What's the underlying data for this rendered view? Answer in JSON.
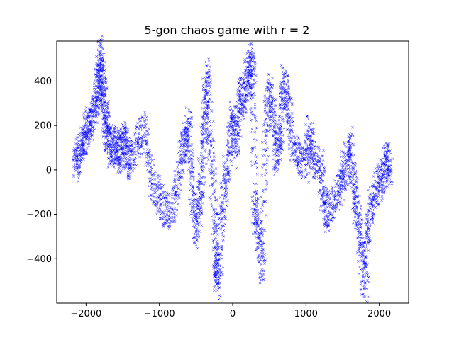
{
  "chart_data": {
    "type": "scatter",
    "title": "5-gon chaos game with r = 2",
    "xlabel": "",
    "ylabel": "",
    "xlim": [
      -2400,
      2400
    ],
    "ylim": [
      -600,
      580
    ],
    "xticks": [
      -2000,
      -1000,
      0,
      1000,
      2000
    ],
    "xtick_labels": [
      "−2000",
      "−1000",
      "0",
      "1000",
      "2000"
    ],
    "yticks": [
      -400,
      -200,
      0,
      200,
      400
    ],
    "ytick_labels": [
      "−400",
      "−200",
      "0",
      "200",
      "400"
    ],
    "grid": false,
    "marker": "x",
    "color": "#0000ff",
    "series": [
      {
        "values": [
          [
            -2150,
            10
          ],
          [
            -2100,
            60
          ],
          [
            -2050,
            120
          ],
          [
            -2000,
            170
          ],
          [
            -1950,
            210
          ],
          [
            -1900,
            260
          ],
          [
            -1850,
            330
          ],
          [
            -1820,
            420
          ],
          [
            -1800,
            530
          ],
          [
            -1780,
            380
          ],
          [
            -1750,
            300
          ],
          [
            -1720,
            200
          ],
          [
            -1700,
            130
          ],
          [
            -1650,
            80
          ],
          [
            -1600,
            120
          ],
          [
            -1550,
            60
          ],
          [
            -1500,
            150
          ],
          [
            -1450,
            100
          ],
          [
            -1400,
            20
          ],
          [
            -1300,
            120
          ],
          [
            -1200,
            190
          ],
          [
            -1100,
            -60
          ],
          [
            -1000,
            -120
          ],
          [
            -900,
            -200
          ],
          [
            -800,
            -150
          ],
          [
            -700,
            40
          ],
          [
            -650,
            120
          ],
          [
            -600,
            200
          ],
          [
            -550,
            -80
          ],
          [
            -500,
            -280
          ],
          [
            -450,
            -120
          ],
          [
            -400,
            60
          ],
          [
            -380,
            250
          ],
          [
            -350,
            430
          ],
          [
            -300,
            160
          ],
          [
            -250,
            -200
          ],
          [
            -220,
            -420
          ],
          [
            -200,
            -510
          ],
          [
            -150,
            -250
          ],
          [
            -100,
            -60
          ],
          [
            -50,
            100
          ],
          [
            0,
            250
          ],
          [
            50,
            80
          ],
          [
            100,
            350
          ],
          [
            150,
            290
          ],
          [
            200,
            420
          ],
          [
            250,
            500
          ],
          [
            280,
            380
          ],
          [
            300,
            -180
          ],
          [
            350,
            -300
          ],
          [
            400,
            -450
          ],
          [
            450,
            120
          ],
          [
            500,
            360
          ],
          [
            550,
            250
          ],
          [
            600,
            40
          ],
          [
            650,
            160
          ],
          [
            700,
            400
          ],
          [
            750,
            300
          ],
          [
            800,
            130
          ],
          [
            900,
            60
          ],
          [
            1000,
            20
          ],
          [
            1050,
            180
          ],
          [
            1100,
            60
          ],
          [
            1200,
            20
          ],
          [
            1250,
            -150
          ],
          [
            1300,
            -200
          ],
          [
            1400,
            -120
          ],
          [
            1500,
            -40
          ],
          [
            1550,
            30
          ],
          [
            1600,
            120
          ],
          [
            1650,
            -70
          ],
          [
            1700,
            -200
          ],
          [
            1750,
            -330
          ],
          [
            1800,
            -530
          ],
          [
            1850,
            -260
          ],
          [
            1900,
            -150
          ],
          [
            2000,
            -60
          ],
          [
            2050,
            -20
          ],
          [
            2100,
            50
          ],
          [
            2150,
            -10
          ]
        ]
      }
    ]
  }
}
